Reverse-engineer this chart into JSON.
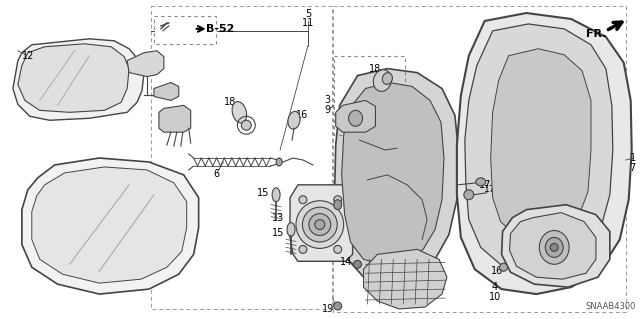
{
  "bg": "#ffffff",
  "lc": "#444444",
  "diagram_id": "SNAAB4300",
  "figsize": [
    6.4,
    3.19
  ],
  "dpi": 100
}
